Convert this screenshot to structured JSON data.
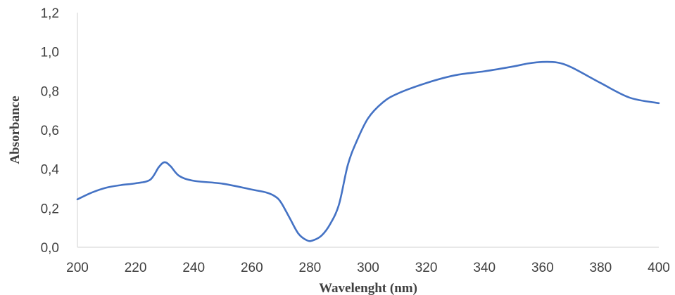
{
  "chart_data": {
    "type": "line",
    "title": "",
    "xlabel": "Wavelenght (nm)",
    "ylabel": "Absorbance",
    "xlim": [
      200,
      400
    ],
    "ylim": [
      0,
      1.2
    ],
    "x_ticks": [
      "200",
      "220",
      "240",
      "260",
      "280",
      "300",
      "320",
      "340",
      "360",
      "380",
      "400"
    ],
    "y_ticks": [
      "0,0",
      "0,2",
      "0,4",
      "0,6",
      "0,8",
      "1,0",
      "1,2"
    ],
    "grid": false,
    "legend": "none",
    "series_color": "#4472C4",
    "axis_color": "#d9d9d9",
    "series": [
      {
        "x": [
          200,
          205,
          210,
          215,
          220,
          225,
          228,
          230,
          232,
          235,
          240,
          250,
          260,
          265,
          268,
          270,
          273,
          276,
          279,
          281,
          284,
          287,
          290,
          293,
          296,
          300,
          305,
          310,
          320,
          330,
          340,
          350,
          355,
          360,
          365,
          370,
          380,
          390,
          400
        ],
        "y": [
          0.245,
          0.28,
          0.305,
          0.318,
          0.327,
          0.345,
          0.41,
          0.435,
          0.415,
          0.365,
          0.34,
          0.325,
          0.295,
          0.28,
          0.26,
          0.23,
          0.15,
          0.07,
          0.035,
          0.035,
          0.06,
          0.12,
          0.22,
          0.42,
          0.54,
          0.66,
          0.74,
          0.785,
          0.84,
          0.88,
          0.9,
          0.925,
          0.94,
          0.948,
          0.945,
          0.92,
          0.84,
          0.765,
          0.737
        ]
      }
    ]
  }
}
